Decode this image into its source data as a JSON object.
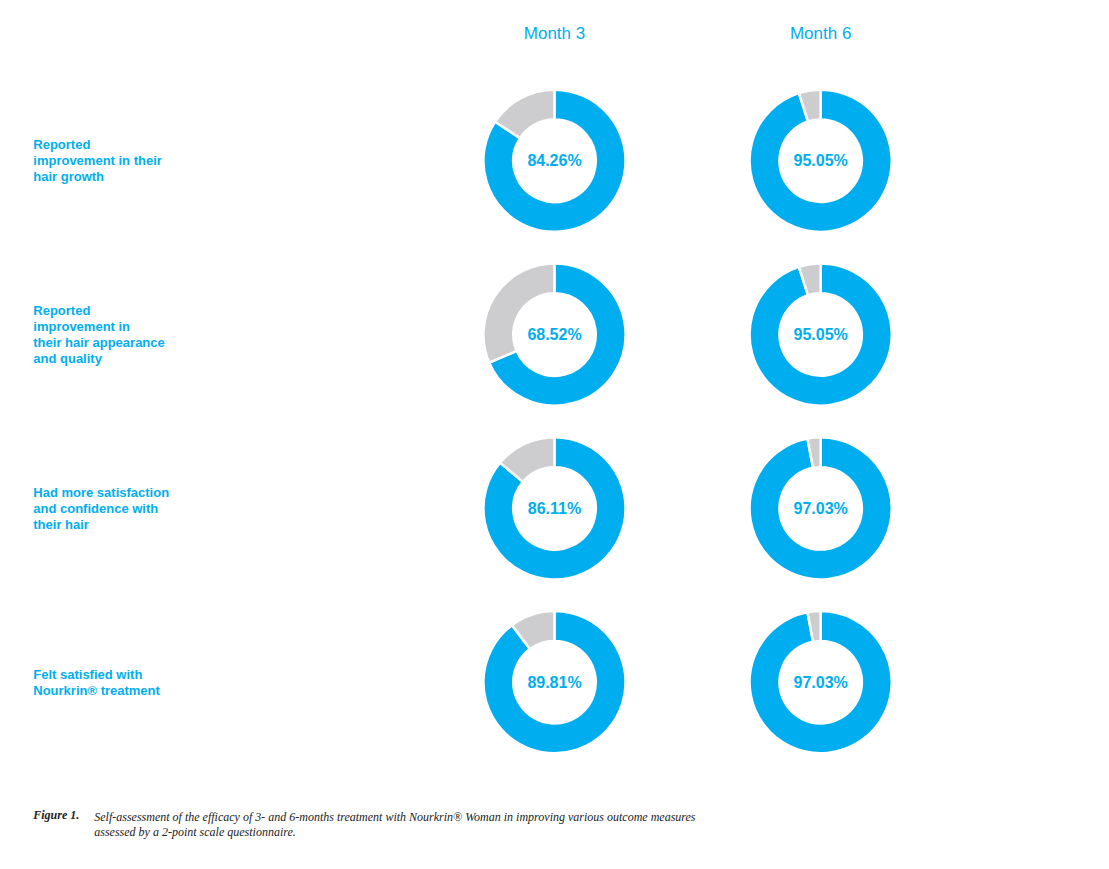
{
  "chart_data": {
    "type": "pie",
    "columns": [
      "Month 3",
      "Month 6"
    ],
    "color": "#00AEEF",
    "colors": [
      "#00AEEF",
      "#CDCDD0"
    ],
    "rows": [
      {
        "label": "Reported\nimprovement in their\nhair growth",
        "charts": [
          {
            "values": [
              84.26,
              15.74
            ],
            "value_labels": [
              "84.26%",
              null
            ]
          },
          {
            "values": [
              95.05,
              4.95
            ],
            "value_labels": [
              "95.05%",
              null
            ]
          }
        ]
      },
      {
        "label": "Reported\nimprovement in\ntheir hair appearance\nand quality",
        "charts": [
          {
            "values": [
              68.52,
              31.48
            ],
            "value_labels": [
              "68.52%",
              null
            ]
          },
          {
            "values": [
              95.05,
              4.95
            ],
            "value_labels": [
              "95.05%",
              null
            ]
          }
        ]
      },
      {
        "label": "Had more satisfaction\nand confidence with\ntheir hair",
        "charts": [
          {
            "values": [
              86.11,
              13.89
            ],
            "value_labels": [
              "86.11%",
              null
            ]
          },
          {
            "values": [
              97.03,
              2.97
            ],
            "value_labels": [
              "97.03%",
              null
            ]
          }
        ]
      },
      {
        "label": "Felt satisfied with\nNourkrin® treatment",
        "charts": [
          {
            "values": [
              89.81,
              10.19
            ],
            "value_labels": [
              "89.81%",
              null
            ]
          },
          {
            "values": [
              97.03,
              2.97
            ],
            "value_labels": [
              "97.03%",
              null
            ]
          }
        ]
      }
    ],
    "caption_bold": "Figure 1.",
    "caption": "Self-assessment of the efficacy of 3- and 6-months treatment with Nourkrin® Woman in improving various outcome measures\nassessed by a 2-point scale questionnaire."
  }
}
